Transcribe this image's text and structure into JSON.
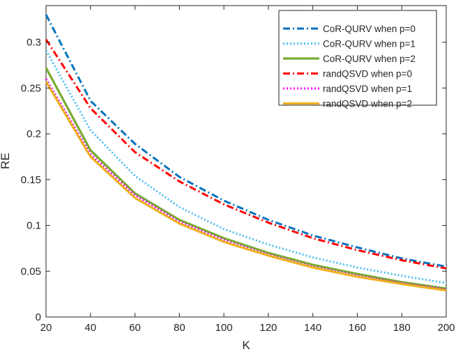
{
  "chart_data": {
    "type": "line",
    "title": "",
    "xlabel": "K",
    "ylabel": "RE",
    "xlim": [
      20,
      200
    ],
    "ylim": [
      0,
      0.34
    ],
    "x": [
      20,
      40,
      60,
      80,
      100,
      120,
      140,
      160,
      180,
      200
    ],
    "xticks": [
      20,
      40,
      60,
      80,
      100,
      120,
      140,
      160,
      180,
      200
    ],
    "xtick_labels": [
      "20",
      "40",
      "60",
      "80",
      "100",
      "120",
      "140",
      "160",
      "180",
      "200"
    ],
    "yticks": [
      0,
      0.05,
      0.1,
      0.15,
      0.2,
      0.25,
      0.3
    ],
    "ytick_labels": [
      "0",
      "0.05",
      "0.1",
      "0.15",
      "0.2",
      "0.25",
      "0.3"
    ],
    "grid": false,
    "legend_position": "top-right",
    "series": [
      {
        "name": "CoR-QURV when p=0",
        "color": "#0072BD",
        "dash": "dash-dot",
        "values": [
          0.33,
          0.236,
          0.189,
          0.153,
          0.127,
          0.106,
          0.089,
          0.076,
          0.064,
          0.055
        ]
      },
      {
        "name": "CoR-QURV when p=1",
        "color": "#4DBEEE",
        "dash": "dotted",
        "values": [
          0.291,
          0.204,
          0.154,
          0.12,
          0.096,
          0.079,
          0.065,
          0.054,
          0.045,
          0.037
        ]
      },
      {
        "name": "CoR-QURV when p=2",
        "color": "#77AC30",
        "dash": "solid",
        "values": [
          0.272,
          0.182,
          0.135,
          0.106,
          0.086,
          0.07,
          0.057,
          0.047,
          0.038,
          0.031
        ]
      },
      {
        "name": "randQSVD when p=0",
        "color": "#FF0000",
        "dash": "dash-dot",
        "values": [
          0.303,
          0.228,
          0.18,
          0.148,
          0.123,
          0.103,
          0.086,
          0.073,
          0.062,
          0.053
        ]
      },
      {
        "name": "randQSVD when p=1",
        "color": "#FF00FF",
        "dash": "dotted",
        "values": [
          0.26,
          0.178,
          0.133,
          0.104,
          0.084,
          0.068,
          0.055,
          0.045,
          0.037,
          0.03
        ]
      },
      {
        "name": "randQSVD when p=2",
        "color": "#EDB120",
        "dash": "solid",
        "values": [
          0.257,
          0.175,
          0.13,
          0.102,
          0.082,
          0.067,
          0.054,
          0.044,
          0.036,
          0.029
        ]
      }
    ]
  }
}
